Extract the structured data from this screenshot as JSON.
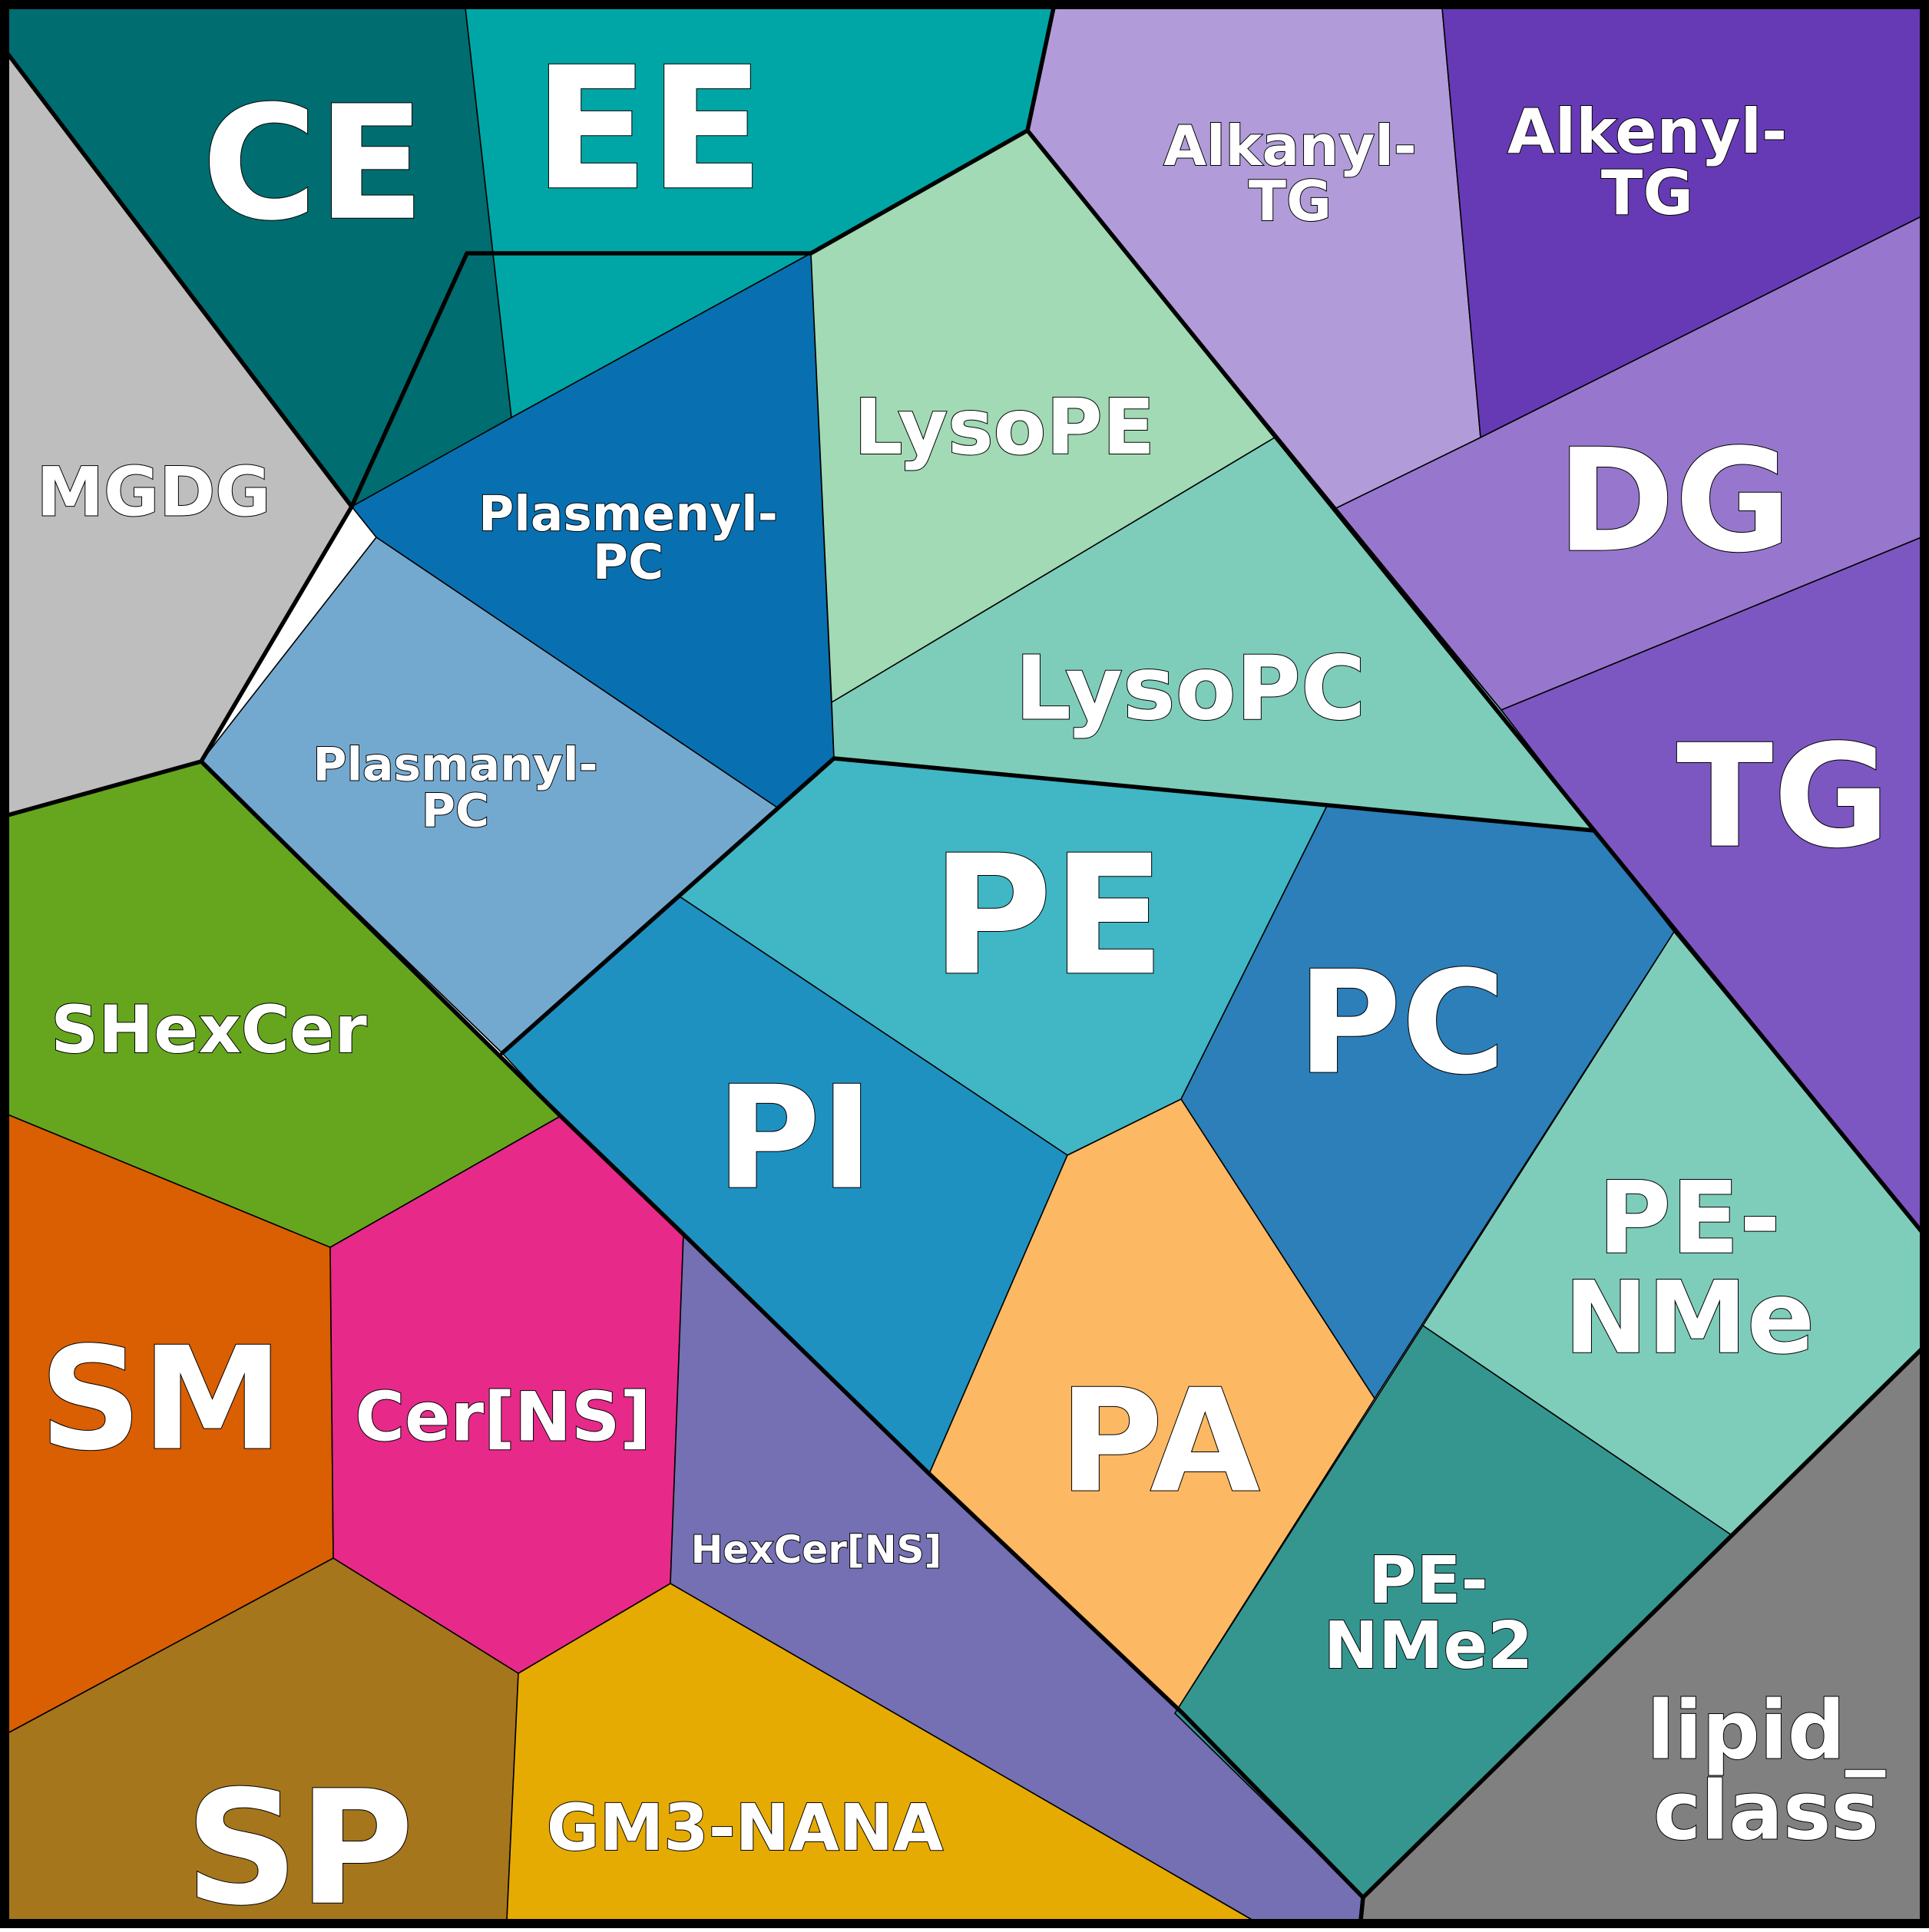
{
  "diagram": {
    "type": "voronoi-treemap",
    "cells": [
      {
        "id": "CE",
        "label_lines": [
          "CE"
        ],
        "color": "#006d70"
      },
      {
        "id": "EE",
        "label_lines": [
          "EE"
        ],
        "color": "#00a6a6"
      },
      {
        "id": "Alkanyl-TG",
        "label_lines": [
          "Alkanyl-",
          "TG"
        ],
        "color": "#b19cd9"
      },
      {
        "id": "Alkenyl-TG",
        "label_lines": [
          "Alkenyl-",
          "TG"
        ],
        "color": "#663ab5"
      },
      {
        "id": "MGDG",
        "label_lines": [
          "MGDG"
        ],
        "color": "#bebebe"
      },
      {
        "id": "Plasmenyl-PC",
        "label_lines": [
          "Plasmenyl-",
          "PC"
        ],
        "color": "#0870b0"
      },
      {
        "id": "LysoPE",
        "label_lines": [
          "LysoPE"
        ],
        "color": "#a1dab4"
      },
      {
        "id": "DG",
        "label_lines": [
          "DG"
        ],
        "color": "#9777cd"
      },
      {
        "id": "LysoPC",
        "label_lines": [
          "LysoPC"
        ],
        "color": "#7ecdbb"
      },
      {
        "id": "Plasmanyl-PC",
        "label_lines": [
          "Plasmanyl-",
          "PC"
        ],
        "color": "#74a9cf"
      },
      {
        "id": "TG",
        "label_lines": [
          "TG"
        ],
        "color": "#7d57c1"
      },
      {
        "id": "PE",
        "label_lines": [
          "PE"
        ],
        "color": "#41b6c4"
      },
      {
        "id": "PC",
        "label_lines": [
          "PC"
        ],
        "color": "#2c7fb8"
      },
      {
        "id": "SHexCer",
        "label_lines": [
          "SHexCer"
        ],
        "color": "#66a61e"
      },
      {
        "id": "PI",
        "label_lines": [
          "PI"
        ],
        "color": "#1f91c1"
      },
      {
        "id": "PE-NMe",
        "label_lines": [
          "PE-",
          "NMe"
        ],
        "color": "#7ecdbb"
      },
      {
        "id": "SM",
        "label_lines": [
          "SM"
        ],
        "color": "#d95f02"
      },
      {
        "id": "Cer[NS]",
        "label_lines": [
          "Cer[NS]"
        ],
        "color": "#e7298a"
      },
      {
        "id": "PA",
        "label_lines": [
          "PA"
        ],
        "color": "#fdb863"
      },
      {
        "id": "HexCer[NS]",
        "label_lines": [
          "HexCer[NS]"
        ],
        "color": "#7570b3"
      },
      {
        "id": "PE-NMe2",
        "label_lines": [
          "PE-",
          "NMe2"
        ],
        "color": "#359690"
      },
      {
        "id": "SP",
        "label_lines": [
          "SP"
        ],
        "color": "#a6761d"
      },
      {
        "id": "GM3-NANA",
        "label_lines": [
          "GM3-NANA"
        ],
        "color": "#e6ab02"
      },
      {
        "id": "lipid_class",
        "label_lines": [
          "lipid_",
          "class"
        ],
        "color": "#808080"
      }
    ]
  }
}
